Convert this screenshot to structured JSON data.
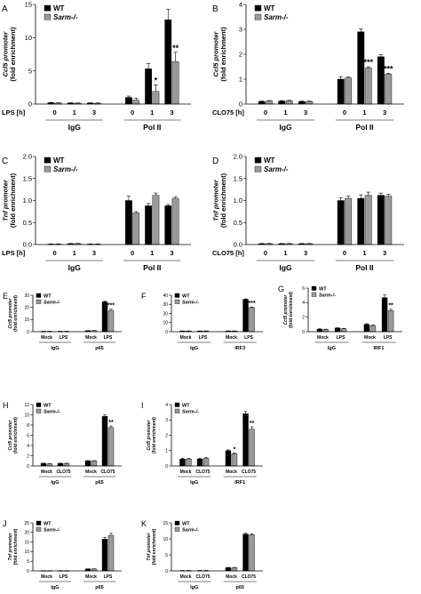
{
  "chart_data": [
    {
      "type": "bar",
      "panel": "A",
      "ylabel": "Ccl5 promoter",
      "ylabel2": "(fold enrichment)",
      "ylim": [
        0,
        15
      ],
      "yticks": [
        "0",
        "5",
        "10",
        "15"
      ],
      "legend": [
        "WT",
        "Sarm-/-"
      ],
      "row_label": "LPS [h]",
      "categories": [
        "0",
        "1",
        "3",
        "0",
        "1",
        "3"
      ],
      "groups": [
        {
          "label": "IgG",
          "count": 3
        },
        {
          "label": "Pol II",
          "count": 3
        }
      ],
      "series": [
        {
          "name": "WT",
          "values": [
            0.2,
            0.15,
            0.15,
            1.0,
            5.3,
            12.7
          ],
          "errors": [
            0.05,
            0.05,
            0.05,
            0.2,
            0.8,
            1.6
          ]
        },
        {
          "name": "Sarm-/-",
          "values": [
            0.15,
            0.12,
            0.12,
            0.6,
            1.9,
            6.4
          ],
          "errors": [
            0.05,
            0.05,
            0.05,
            0.3,
            1.0,
            1.4
          ]
        }
      ],
      "significance": [
        "",
        "",
        "",
        "",
        "*",
        "**"
      ]
    },
    {
      "type": "bar",
      "panel": "B",
      "ylabel": "Ccl5 promoter",
      "ylabel2": "(fold enrichment)",
      "ylim": [
        0,
        4
      ],
      "yticks": [
        "0",
        "1",
        "2",
        "3",
        "4"
      ],
      "legend": [
        "WT",
        "Sarm-/-"
      ],
      "row_label": "CLO75 [h]",
      "categories": [
        "0",
        "1",
        "3",
        "0",
        "1",
        "3"
      ],
      "groups": [
        {
          "label": "IgG",
          "count": 3
        },
        {
          "label": "Pol II",
          "count": 3
        }
      ],
      "series": [
        {
          "name": "WT",
          "values": [
            0.1,
            0.12,
            0.1,
            1.0,
            2.9,
            1.9
          ],
          "errors": [
            0.02,
            0.02,
            0.02,
            0.1,
            0.12,
            0.08
          ]
        },
        {
          "name": "Sarm-/-",
          "values": [
            0.12,
            0.13,
            0.1,
            1.05,
            1.45,
            1.2
          ],
          "errors": [
            0.02,
            0.02,
            0.02,
            0.05,
            0.05,
            0.04
          ]
        }
      ],
      "significance": [
        "",
        "",
        "",
        "",
        "***",
        "***"
      ]
    },
    {
      "type": "bar",
      "panel": "C",
      "ylabel": "Tnf promoter",
      "ylabel2": "(fold enrichment)",
      "ylim": [
        0,
        2
      ],
      "yticks": [
        "0.0",
        "0.5",
        "1.0",
        "1.5",
        "2.0"
      ],
      "legend": [
        "WT",
        "Sarm-/-"
      ],
      "row_label": "LPS [h]",
      "categories": [
        "0",
        "1",
        "3",
        "0",
        "1",
        "3"
      ],
      "groups": [
        {
          "label": "IgG",
          "count": 3
        },
        {
          "label": "Pol II",
          "count": 3
        }
      ],
      "series": [
        {
          "name": "WT",
          "values": [
            0.01,
            0.02,
            0.01,
            1.0,
            0.88,
            0.88
          ],
          "errors": [
            0.005,
            0.005,
            0.005,
            0.1,
            0.05,
            0.03
          ]
        },
        {
          "name": "Sarm-/-",
          "values": [
            0.01,
            0.02,
            0.01,
            0.72,
            1.12,
            1.05
          ],
          "errors": [
            0.005,
            0.005,
            0.005,
            0.03,
            0.05,
            0.03
          ]
        }
      ],
      "significance": [
        "",
        "",
        "",
        "",
        "",
        ""
      ]
    },
    {
      "type": "bar",
      "panel": "D",
      "ylabel": "Tnf promoter",
      "ylabel2": "(fold enrichment)",
      "ylim": [
        0,
        2
      ],
      "yticks": [
        "0.0",
        "0.5",
        "1.0",
        "1.5",
        "2.0"
      ],
      "legend": [
        "WT",
        "Sarm-/-"
      ],
      "row_label": "CLO75 [h]",
      "categories": [
        "0",
        "1",
        "3",
        "0",
        "1",
        "3"
      ],
      "groups": [
        {
          "label": "IgG",
          "count": 3
        },
        {
          "label": "Pol II",
          "count": 3
        }
      ],
      "series": [
        {
          "name": "WT",
          "values": [
            0.02,
            0.02,
            0.02,
            1.0,
            1.05,
            1.12
          ],
          "errors": [
            0.005,
            0.005,
            0.005,
            0.06,
            0.08,
            0.05
          ]
        },
        {
          "name": "Sarm-/-",
          "values": [
            0.02,
            0.02,
            0.02,
            1.05,
            1.12,
            1.1
          ],
          "errors": [
            0.005,
            0.005,
            0.005,
            0.05,
            0.07,
            0.04
          ]
        }
      ],
      "significance": [
        "",
        "",
        "",
        "",
        "",
        ""
      ]
    },
    {
      "type": "bar",
      "panel": "E",
      "ylabel": "Ccl5 promoter",
      "ylabel2": "(fold enrichment)",
      "ylim": [
        0,
        30
      ],
      "yticks": [
        "0",
        "10",
        "20",
        "30"
      ],
      "legend": [
        "WT",
        "Sarm-/-"
      ],
      "categories": [
        "Mock",
        "LPS",
        "Mock",
        "LPS"
      ],
      "groups": [
        {
          "label": "IgG",
          "count": 2
        },
        {
          "label": "p65",
          "count": 2
        }
      ],
      "series": [
        {
          "name": "WT",
          "values": [
            0.3,
            0.3,
            0.8,
            24.5
          ],
          "errors": [
            0.1,
            0.1,
            0.1,
            0.6
          ]
        },
        {
          "name": "Sarm-/-",
          "values": [
            0.3,
            0.3,
            0.9,
            17.5
          ],
          "errors": [
            0.1,
            0.1,
            0.1,
            1.0
          ]
        }
      ],
      "significance": [
        "",
        "",
        "",
        "***"
      ]
    },
    {
      "type": "bar",
      "panel": "F",
      "ylabel": "",
      "ylabel2": "",
      "ylim": [
        0,
        40
      ],
      "yticks": [
        "0",
        "10",
        "20",
        "30",
        "40"
      ],
      "legend": [
        "WT",
        "Sarm-/-"
      ],
      "categories": [
        "Mock",
        "LPS",
        "Mock",
        "LPS"
      ],
      "groups": [
        {
          "label": "IgG",
          "count": 2
        },
        {
          "label": "IRF3",
          "count": 2
        }
      ],
      "series": [
        {
          "name": "WT",
          "values": [
            0.8,
            0.8,
            0.8,
            35.5
          ],
          "errors": [
            0.1,
            0.1,
            0.1,
            0.5
          ]
        },
        {
          "name": "Sarm-/-",
          "values": [
            0.8,
            0.8,
            0.8,
            26.5
          ],
          "errors": [
            0.1,
            0.1,
            0.1,
            0.6
          ]
        }
      ],
      "significance": [
        "",
        "",
        "",
        "***"
      ]
    },
    {
      "type": "bar",
      "panel": "G",
      "ylabel": "Ccl5 promoter",
      "ylabel2": "(fold enrichment)",
      "ylim": [
        0,
        6
      ],
      "yticks": [
        "0",
        "2",
        "4",
        "6"
      ],
      "legend": [
        "WT",
        "Sarm-/-"
      ],
      "categories": [
        "Mock",
        "LPS",
        "Mock",
        "LPS"
      ],
      "groups": [
        {
          "label": "IgG",
          "count": 2
        },
        {
          "label": "IRF1",
          "count": 2
        }
      ],
      "series": [
        {
          "name": "WT",
          "values": [
            0.35,
            0.5,
            1.0,
            4.7
          ],
          "errors": [
            0.05,
            0.05,
            0.1,
            0.35
          ]
        },
        {
          "name": "Sarm-/-",
          "values": [
            0.3,
            0.4,
            0.85,
            2.9
          ],
          "errors": [
            0.05,
            0.05,
            0.08,
            0.2
          ]
        }
      ],
      "significance": [
        "",
        "",
        "",
        "**"
      ]
    },
    {
      "type": "bar",
      "panel": "H",
      "ylabel": "Ccl5 promoter",
      "ylabel2": "(fold enrichment)",
      "ylim": [
        0,
        12
      ],
      "yticks": [
        "0",
        "2",
        "4",
        "6",
        "8",
        "10",
        "12"
      ],
      "legend": [
        "WT",
        "Sarm-/-"
      ],
      "categories": [
        "Mock",
        "CLO75",
        "Mock",
        "CLO75"
      ],
      "groups": [
        {
          "label": "IgG",
          "count": 2
        },
        {
          "label": "p65",
          "count": 2
        }
      ],
      "series": [
        {
          "name": "WT",
          "values": [
            0.5,
            0.5,
            1.0,
            9.7
          ],
          "errors": [
            0.05,
            0.05,
            0.05,
            0.3
          ]
        },
        {
          "name": "Sarm-/-",
          "values": [
            0.4,
            0.5,
            1.0,
            7.5
          ],
          "errors": [
            0.05,
            0.05,
            0.05,
            0.3
          ]
        }
      ],
      "significance": [
        "",
        "",
        "",
        "**"
      ]
    },
    {
      "type": "bar",
      "panel": "I",
      "ylabel": "Ccl5 promoter",
      "ylabel2": "(fold enrichment)",
      "ylim": [
        0,
        4
      ],
      "yticks": [
        "0",
        "1",
        "2",
        "3",
        "4"
      ],
      "legend": [
        "WT",
        "Sarm-/-"
      ],
      "categories": [
        "Mock",
        "CLO75",
        "Mock",
        "CLO75"
      ],
      "groups": [
        {
          "label": "IgG",
          "count": 2
        },
        {
          "label": "IRF1",
          "count": 2
        }
      ],
      "series": [
        {
          "name": "WT",
          "values": [
            0.45,
            0.45,
            1.0,
            3.4
          ],
          "errors": [
            0.05,
            0.05,
            0.05,
            0.15
          ]
        },
        {
          "name": "Sarm-/-",
          "values": [
            0.45,
            0.5,
            0.8,
            2.4
          ],
          "errors": [
            0.05,
            0.05,
            0.05,
            0.15
          ]
        }
      ],
      "significance": [
        "",
        "",
        "*",
        "**"
      ]
    },
    {
      "type": "bar",
      "panel": "J",
      "ylabel": "Tnf promoter",
      "ylabel2": "(fold enrichment)",
      "ylim": [
        0,
        25
      ],
      "yticks": [
        "0",
        "5",
        "10",
        "15",
        "20",
        "25"
      ],
      "legend": [
        "WT",
        "Sarm-/-"
      ],
      "categories": [
        "Mock",
        "LPS",
        "Mock",
        "LPS"
      ],
      "groups": [
        {
          "label": "IgG",
          "count": 2
        },
        {
          "label": "p65",
          "count": 2
        }
      ],
      "series": [
        {
          "name": "WT",
          "values": [
            0.1,
            0.1,
            1.0,
            16.5
          ],
          "errors": [
            0.05,
            0.05,
            0.1,
            1.0
          ]
        },
        {
          "name": "Sarm-/-",
          "values": [
            0.1,
            0.1,
            1.0,
            18.5
          ],
          "errors": [
            0.05,
            0.05,
            0.1,
            1.0
          ]
        }
      ],
      "significance": [
        "",
        "",
        "",
        ""
      ]
    },
    {
      "type": "bar",
      "panel": "K",
      "ylabel": "Tnf promoter",
      "ylabel2": "(fold enrichment)",
      "ylim": [
        0,
        15
      ],
      "yticks": [
        "0",
        "5",
        "10",
        "15"
      ],
      "legend": [
        "WT",
        "Sarm-/-"
      ],
      "categories": [
        "Mock",
        "CLO75",
        "Mock",
        "CLO75"
      ],
      "groups": [
        {
          "label": "IgG",
          "count": 2
        },
        {
          "label": "p65",
          "count": 2
        }
      ],
      "series": [
        {
          "name": "WT",
          "values": [
            0.1,
            0.1,
            1.0,
            11.5
          ],
          "errors": [
            0.05,
            0.05,
            0.1,
            0.3
          ]
        },
        {
          "name": "Sarm-/-",
          "values": [
            0.1,
            0.1,
            1.0,
            11.3
          ],
          "errors": [
            0.05,
            0.05,
            0.1,
            0.3
          ]
        }
      ],
      "significance": [
        "",
        "",
        "",
        ""
      ]
    }
  ]
}
